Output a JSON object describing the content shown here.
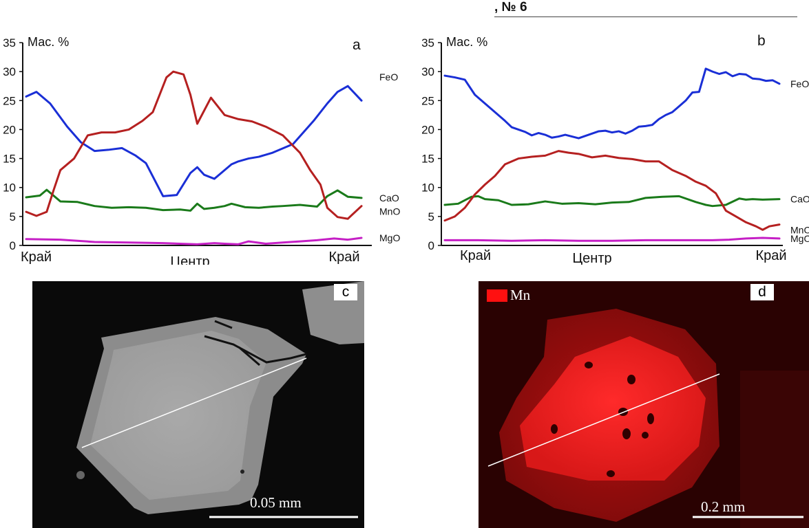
{
  "header": {
    "issue": ", № 6"
  },
  "chart_data": [
    {
      "type": "line",
      "panel_label": "a",
      "ylabel": "Мас. %",
      "ylim": [
        0,
        35
      ],
      "yticks": [
        "0",
        "5",
        "10",
        "15",
        "20",
        "25",
        "30",
        "35"
      ],
      "xlim": [
        0,
        100
      ],
      "xlabels": {
        "left": "Край",
        "center": "Центр",
        "right": "Край"
      },
      "series": [
        {
          "name": "FeO",
          "color": "#1a2fd6",
          "x": [
            0,
            3,
            7,
            12,
            16,
            20,
            24,
            28,
            32,
            35,
            40,
            44,
            48,
            50,
            52,
            55,
            60,
            62,
            65,
            68,
            72,
            78,
            84,
            88,
            91,
            94,
            98
          ],
          "y": [
            25.7,
            26.5,
            24.5,
            20.5,
            17.8,
            16.3,
            16.5,
            16.8,
            15.5,
            14.2,
            8.5,
            8.7,
            12.5,
            13.5,
            12.2,
            11.5,
            14,
            14.5,
            15,
            15.3,
            16,
            17.5,
            21.5,
            24.5,
            26.5,
            27.5,
            25
          ]
        },
        {
          "name": "CaO",
          "color": "#1a7a1a",
          "x": [
            0,
            4,
            6,
            10,
            15,
            20,
            25,
            30,
            35,
            40,
            45,
            48,
            50,
            52,
            55,
            58,
            60,
            64,
            68,
            72,
            75,
            80,
            85,
            88,
            91,
            94,
            98
          ],
          "y": [
            8.3,
            8.6,
            9.6,
            7.6,
            7.5,
            6.8,
            6.5,
            6.6,
            6.5,
            6.1,
            6.2,
            6.0,
            7.2,
            6.3,
            6.5,
            6.8,
            7.2,
            6.6,
            6.5,
            6.7,
            6.8,
            7.0,
            6.7,
            8.5,
            9.5,
            8.4,
            8.2
          ]
        },
        {
          "name": "MnO",
          "color": "#b52020",
          "x": [
            0,
            3,
            6,
            8,
            10,
            14,
            18,
            22,
            26,
            30,
            34,
            37,
            41,
            43,
            46,
            48,
            50,
            54,
            58,
            62,
            66,
            70,
            75,
            80,
            83,
            86,
            88,
            91,
            94,
            98
          ],
          "y": [
            5.8,
            5.1,
            5.8,
            9.5,
            13,
            15,
            19,
            19.5,
            19.5,
            20,
            21.5,
            23,
            29,
            30,
            29.5,
            26,
            21,
            25.5,
            22.5,
            21.8,
            21.4,
            20.5,
            19,
            16,
            13,
            10.5,
            6.5,
            4.9,
            4.6,
            6.8
          ]
        },
        {
          "name": "MgO",
          "color": "#c51fc5",
          "x": [
            0,
            10,
            20,
            30,
            40,
            50,
            55,
            58,
            62,
            65,
            70,
            75,
            80,
            85,
            90,
            94,
            98
          ],
          "y": [
            1.1,
            1.0,
            0.6,
            0.5,
            0.4,
            0.2,
            0.4,
            0.3,
            0.2,
            0.7,
            0.3,
            0.5,
            0.7,
            0.9,
            1.2,
            1.0,
            1.3
          ]
        }
      ]
    },
    {
      "type": "line",
      "panel_label": "b",
      "ylabel": "Мас. %",
      "ylim": [
        0,
        35
      ],
      "yticks": [
        "0",
        "5",
        "10",
        "15",
        "20",
        "25",
        "30",
        "35"
      ],
      "xlim": [
        0,
        100
      ],
      "xlabels": {
        "left": "Край",
        "center": "Центр",
        "right": "Край"
      },
      "series": [
        {
          "name": "FeO",
          "color": "#1a2fd6",
          "x": [
            0,
            3,
            6,
            9,
            12,
            15,
            18,
            20,
            22,
            24,
            26,
            28,
            30,
            32,
            34,
            36,
            38,
            40,
            42,
            44,
            46,
            48,
            50,
            52,
            54,
            56,
            58,
            60,
            62,
            64,
            66,
            68,
            70,
            72,
            74,
            76,
            78,
            80,
            82,
            84,
            86,
            88,
            90,
            92,
            94,
            96,
            98,
            100
          ],
          "y": [
            29.3,
            29.0,
            28.6,
            26.0,
            24.5,
            23.0,
            21.5,
            20.4,
            20.0,
            19.6,
            19.0,
            19.4,
            19.1,
            18.6,
            18.8,
            19.1,
            18.8,
            18.5,
            18.9,
            19.3,
            19.7,
            19.8,
            19.5,
            19.7,
            19.3,
            19.8,
            20.5,
            20.6,
            20.8,
            21.8,
            22.5,
            23.0,
            24.0,
            25.0,
            26.4,
            26.5,
            30.5,
            30.0,
            29.6,
            29.9,
            29.2,
            29.6,
            29.5,
            28.8,
            28.7,
            28.4,
            28.5,
            27.9
          ]
        },
        {
          "name": "CaO",
          "color": "#1a7a1a",
          "x": [
            0,
            4,
            8,
            10,
            12,
            16,
            20,
            25,
            30,
            35,
            40,
            45,
            50,
            55,
            60,
            65,
            70,
            75,
            78,
            80,
            84,
            88,
            90,
            92,
            95,
            100
          ],
          "y": [
            7.0,
            7.2,
            8.4,
            8.5,
            8.0,
            7.8,
            7.0,
            7.1,
            7.6,
            7.2,
            7.3,
            7.1,
            7.4,
            7.5,
            8.2,
            8.4,
            8.5,
            7.5,
            7.0,
            6.8,
            7.0,
            8.1,
            7.9,
            8.0,
            7.9,
            8.0
          ]
        },
        {
          "name": "MnO",
          "color": "#b52020",
          "x": [
            0,
            3,
            6,
            9,
            12,
            15,
            18,
            22,
            26,
            30,
            34,
            37,
            40,
            44,
            48,
            52,
            56,
            60,
            64,
            68,
            72,
            75,
            78,
            81,
            84,
            87,
            90,
            93,
            95,
            97,
            100
          ],
          "y": [
            4.3,
            5.0,
            6.5,
            8.8,
            10.5,
            12.0,
            14.0,
            15.0,
            15.3,
            15.5,
            16.3,
            16.0,
            15.8,
            15.2,
            15.5,
            15.1,
            14.9,
            14.5,
            14.5,
            13.0,
            12.0,
            11.0,
            10.3,
            9.0,
            6.0,
            5.0,
            4.0,
            3.3,
            2.7,
            3.3,
            3.6
          ]
        },
        {
          "name": "MgO",
          "color": "#c51fc5",
          "x": [
            0,
            10,
            20,
            30,
            40,
            50,
            60,
            70,
            80,
            85,
            90,
            95,
            100
          ],
          "y": [
            0.9,
            0.9,
            0.8,
            0.9,
            0.8,
            0.8,
            0.9,
            0.9,
            0.9,
            1.0,
            1.2,
            1.3,
            1.2
          ]
        }
      ]
    }
  ],
  "images": {
    "c": {
      "label": "c",
      "scale": "0.05 mm"
    },
    "d": {
      "label": "d",
      "element": "Mn",
      "scale": "0.2 mm"
    }
  }
}
